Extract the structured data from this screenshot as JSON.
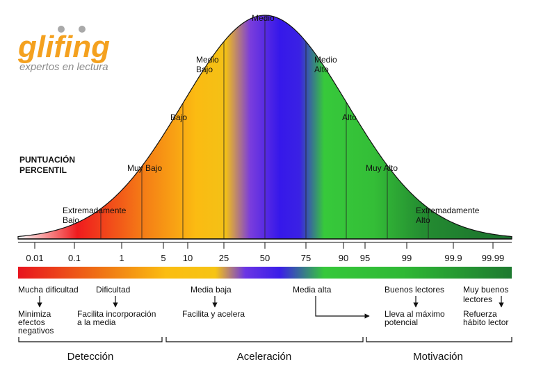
{
  "logo": {
    "name": "glifing",
    "tagline": "expertos en lectura",
    "colors": {
      "primary": "#f4a11f",
      "tagline": "#8a8a8a",
      "dots": "#a9a9a9"
    }
  },
  "axis_title": [
    "PUNTUACIÓN",
    "PERCENTIL"
  ],
  "curve_labels": [
    {
      "id": "extremadamente-bajo",
      "lines": [
        "Extremadamente",
        "Bajo"
      ],
      "percentile": 0.5
    },
    {
      "id": "muy-bajo",
      "lines": [
        "Muy Bajo"
      ],
      "percentile": 3
    },
    {
      "id": "bajo",
      "lines": [
        "Bajo"
      ],
      "percentile": 10
    },
    {
      "id": "medio-bajo",
      "lines": [
        "Medio",
        "Bajo"
      ],
      "percentile": 25
    },
    {
      "id": "medio",
      "lines": [
        "Medio"
      ],
      "percentile": 50
    },
    {
      "id": "medio-alto",
      "lines": [
        "Medio",
        "Alto"
      ],
      "percentile": 75
    },
    {
      "id": "alto",
      "lines": [
        "Alto"
      ],
      "percentile": 90
    },
    {
      "id": "muy-alto",
      "lines": [
        "Muy Alto"
      ],
      "percentile": 97
    },
    {
      "id": "extremadamente-alto",
      "lines": [
        "Extremadamente",
        "Alto"
      ],
      "percentile": 99.5
    }
  ],
  "percentile_ticks": [
    "0.01",
    "0.1",
    "1",
    "5",
    "10",
    "25",
    "50",
    "75",
    "90",
    "95",
    "99",
    "99.9",
    "99.99"
  ],
  "color_bar": {
    "stops": [
      "#e8141e",
      "#f07a14",
      "#fbbd12",
      "#f6c414",
      "#6b35e4",
      "#3a1ee8",
      "#36c83a",
      "#2fb835",
      "#1e7a30"
    ]
  },
  "categories": [
    {
      "id": "mucha-dificultad",
      "label": "Mucha dificultad",
      "action": [
        "Minimiza",
        "efectos",
        "negativos"
      ]
    },
    {
      "id": "dificultad",
      "label": "Dificultad",
      "action": [
        "Facilita incorporación",
        "a la media"
      ]
    },
    {
      "id": "media-baja",
      "label": "Media baja",
      "action": [
        "Facilita y acelera"
      ]
    },
    {
      "id": "media-alta",
      "label": "Media alta",
      "action": []
    },
    {
      "id": "buenos-lectores",
      "label": "Buenos lectores",
      "action": [
        "Lleva al máximo",
        "potencial"
      ]
    },
    {
      "id": "muy-buenos-lectores",
      "label": [
        "Muy buenos",
        "lectores"
      ],
      "action": [
        "Refuerza",
        "hábito lector"
      ]
    }
  ],
  "sections": [
    "Detección",
    "Aceleración",
    "Motivación"
  ]
}
